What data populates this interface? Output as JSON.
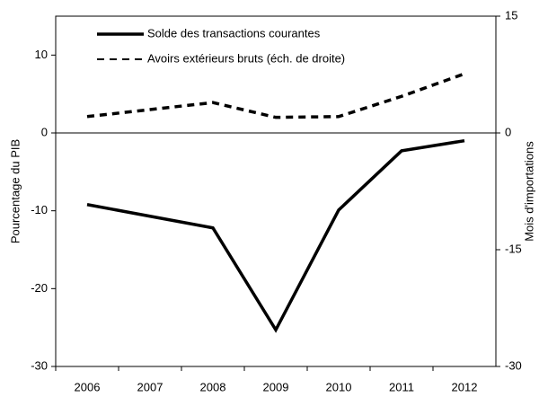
{
  "chart_data": {
    "type": "line",
    "categories": [
      "2006",
      "2007",
      "2008",
      "2009",
      "2010",
      "2011",
      "2012"
    ],
    "series": [
      {
        "name": "Solde des transactions courantes",
        "color": "#000000",
        "style": "solid",
        "values": [
          -9.2,
          -10.7,
          -12.2,
          -25.3,
          -9.9,
          -2.3,
          -1.0
        ]
      },
      {
        "name": "Avoirs extérieurs bruts (éch. de droite)",
        "color": "#000000",
        "style": "dashed",
        "axis": "y2",
        "values": [
          2.1,
          3.0,
          3.9,
          2.0,
          2.1,
          4.7,
          7.6
        ]
      }
    ],
    "ylabel": "Pourcentage du PIB",
    "y2label": "Mois d'importations",
    "ylim": [
      -30,
      15
    ],
    "yticks": [
      -30,
      -20,
      -10,
      0,
      10
    ],
    "y2lim": [
      -30,
      15
    ],
    "y2ticks": [
      -30,
      -15,
      0,
      15
    ],
    "legend": "upper left"
  }
}
